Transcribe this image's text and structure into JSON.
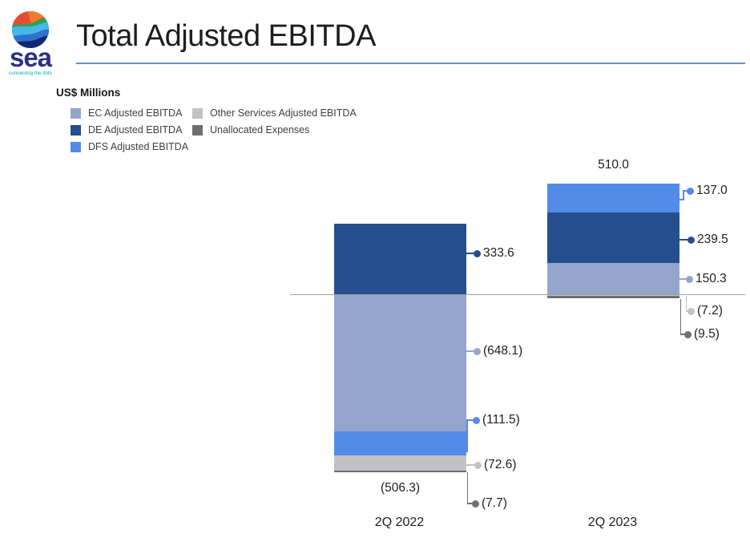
{
  "header": {
    "logo": {
      "wordmark": "sea",
      "tagline": "connecting the dots"
    },
    "title": "Total Adjusted EBITDA"
  },
  "chart_data": {
    "type": "bar",
    "stacked": true,
    "title": "Total Adjusted EBITDA",
    "units": "US$ Millions",
    "categories": [
      "2Q 2022",
      "2Q 2023"
    ],
    "series": [
      {
        "key": "EC",
        "name": "EC Adjusted EBITDA",
        "color": "#94a5cc",
        "values": [
          -648.1,
          150.3
        ]
      },
      {
        "key": "DE",
        "name": "DE Adjusted EBITDA",
        "color": "#254e8e",
        "values": [
          333.6,
          239.5
        ]
      },
      {
        "key": "DFS",
        "name": "DFS Adjusted EBITDA",
        "color": "#548be8",
        "values": [
          -111.5,
          137.0
        ]
      },
      {
        "key": "Other",
        "name": "Other Services Adjusted EBITDA",
        "color": "#c2c2c4",
        "values": [
          -72.6,
          -7.2
        ]
      },
      {
        "key": "Unalloc",
        "name": "Unallocated Expenses",
        "color": "#6f6f72",
        "values": [
          -7.7,
          -9.5
        ]
      }
    ],
    "totals": [
      "(506.3)",
      "510.0"
    ],
    "data_labels": [
      {
        "category": "2Q 2022",
        "series": "DE",
        "text": "333.6"
      },
      {
        "category": "2Q 2022",
        "series": "EC",
        "text": "(648.1)"
      },
      {
        "category": "2Q 2022",
        "series": "DFS",
        "text": "(111.5)"
      },
      {
        "category": "2Q 2022",
        "series": "Other",
        "text": "(72.6)"
      },
      {
        "category": "2Q 2022",
        "series": "Unalloc",
        "text": "(7.7)"
      },
      {
        "category": "2Q 2023",
        "series": "DFS",
        "text": "137.0"
      },
      {
        "category": "2Q 2023",
        "series": "DE",
        "text": "239.5"
      },
      {
        "category": "2Q 2023",
        "series": "EC",
        "text": "150.3"
      },
      {
        "category": "2Q 2023",
        "series": "Other",
        "text": "(7.2)"
      },
      {
        "category": "2Q 2023",
        "series": "Unalloc",
        "text": "(9.5)"
      }
    ],
    "axis": {
      "zero_line": true,
      "grid": false
    },
    "legend_position": "top-left"
  }
}
